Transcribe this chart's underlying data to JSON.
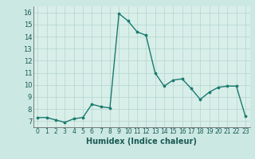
{
  "x": [
    0,
    1,
    2,
    3,
    4,
    5,
    6,
    7,
    8,
    9,
    10,
    11,
    12,
    13,
    14,
    15,
    16,
    17,
    18,
    19,
    20,
    21,
    22,
    23
  ],
  "y": [
    7.3,
    7.3,
    7.1,
    6.9,
    7.2,
    7.3,
    8.4,
    8.2,
    8.1,
    15.9,
    15.3,
    14.4,
    14.1,
    11.0,
    9.9,
    10.4,
    10.5,
    9.7,
    8.8,
    9.4,
    9.8,
    9.9,
    9.9,
    7.4
  ],
  "line_color": "#1a7a6e",
  "marker": "o",
  "markersize": 2.2,
  "linewidth": 1.0,
  "ylim": [
    6.5,
    16.5
  ],
  "xlim": [
    -0.5,
    23.5
  ],
  "yticks": [
    7,
    8,
    9,
    10,
    11,
    12,
    13,
    14,
    15,
    16
  ],
  "xtick_labels": [
    "0",
    "1",
    "2",
    "3",
    "4",
    "5",
    "6",
    "7",
    "8",
    "9",
    "10",
    "11",
    "12",
    "13",
    "14",
    "15",
    "16",
    "17",
    "18",
    "19",
    "20",
    "21",
    "22",
    "23"
  ],
  "xlabel": "Humidex (Indice chaleur)",
  "xlabel_fontsize": 7,
  "ytick_fontsize": 6,
  "xtick_fontsize": 5.5,
  "bg_color": "#cce8e3",
  "grid_color": "#b8d8d2",
  "plot_area_color": "#d8eee9"
}
